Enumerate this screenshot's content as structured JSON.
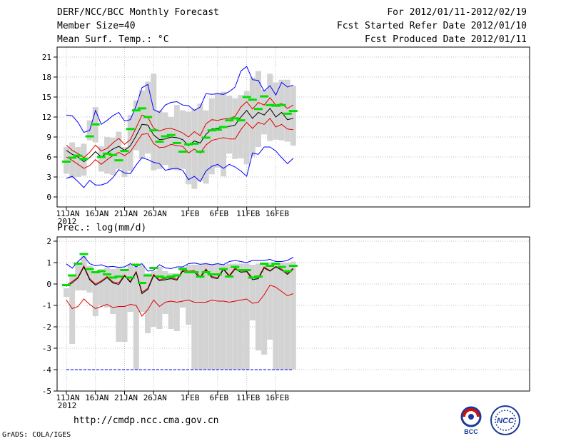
{
  "header": {
    "title": "DERF/NCC/BCC Monthly Forecast",
    "member_size": "Member Size=40",
    "variable1": "Mean Surf. Temp.: °C",
    "fcst_range": "For 2012/01/11-2012/02/19",
    "fcst_started": "Fcst Started Refer Date 2012/01/10",
    "fcst_produced": "Fcst Produced Date 2012/01/11"
  },
  "footer": {
    "url": "http://cmdp.ncc.cma.gov.cn",
    "grads": "GrADS: COLA/IGES",
    "logo_bcc": "BCC",
    "logo_ncc": "NCC"
  },
  "colors": {
    "envelope": "#0000ff",
    "spread": "#e00000",
    "mean": "#000000",
    "observed": "#00e000",
    "box": "#d3d3d3"
  },
  "chart_data": [
    {
      "type": "line",
      "title": "Mean Surf. Temp.: °C",
      "x_tick_labels": [
        "11JAN",
        "16JAN",
        "21JAN",
        "26JAN",
        "1FEB",
        "6FEB",
        "11FEB",
        "16FEB"
      ],
      "x_tick_days": [
        0,
        5,
        10,
        15,
        21,
        26,
        31,
        36
      ],
      "x_year_label": "2012",
      "ylim": [
        -1.5,
        22.5
      ],
      "y_ticks": [
        0,
        3,
        6,
        9,
        12,
        15,
        18,
        21
      ],
      "series": [
        {
          "name": "max",
          "values": [
            12.3,
            12.2,
            11.2,
            9.7,
            10.0,
            13.0,
            10.9,
            11.5,
            12.2,
            12.7,
            11.4,
            11.6,
            13.7,
            16.4,
            16.9,
            13.1,
            12.7,
            13.8,
            14.2,
            14.3,
            13.8,
            13.7,
            13.0,
            13.5,
            15.5,
            15.4,
            15.5,
            15.4,
            15.8,
            16.5,
            18.9,
            19.6,
            17.6,
            17.5,
            15.9,
            16.7,
            15.3,
            17.2,
            16.5,
            16.8
          ]
        },
        {
          "name": "spread_high",
          "values": [
            7.8,
            7.0,
            6.5,
            5.9,
            6.7,
            7.8,
            6.9,
            7.3,
            8.1,
            8.8,
            7.9,
            8.6,
            10.4,
            12.3,
            12.0,
            10.3,
            9.9,
            10.2,
            10.3,
            10.0,
            9.6,
            9.0,
            9.8,
            9.2,
            11.0,
            11.6,
            11.5,
            11.7,
            11.8,
            12.1,
            13.5,
            14.3,
            13.2,
            14.2,
            13.8,
            14.9,
            13.8,
            14.0,
            13.3,
            13.8
          ]
        },
        {
          "name": "mean",
          "values": [
            7.0,
            6.4,
            6.0,
            5.3,
            5.9,
            6.8,
            6.0,
            6.6,
            7.2,
            7.6,
            7.0,
            7.7,
            9.2,
            10.9,
            10.8,
            9.3,
            8.6,
            8.7,
            9.0,
            8.9,
            8.6,
            7.7,
            8.4,
            8.1,
            9.4,
            10.2,
            10.3,
            10.5,
            10.6,
            10.8,
            12.0,
            13.0,
            11.8,
            12.7,
            12.3,
            13.3,
            12.0,
            12.7,
            11.6,
            11.8
          ]
        },
        {
          "name": "spread_low",
          "values": [
            6.0,
            5.5,
            4.9,
            4.3,
            4.7,
            5.6,
            4.9,
            5.6,
            6.2,
            6.7,
            6.2,
            6.8,
            8.1,
            9.4,
            9.5,
            8.0,
            7.4,
            7.5,
            7.9,
            7.7,
            7.6,
            6.6,
            7.2,
            6.6,
            7.8,
            8.5,
            8.7,
            8.9,
            8.7,
            8.7,
            10.1,
            11.2,
            10.3,
            11.2,
            10.9,
            11.8,
            10.5,
            10.9,
            10.2,
            10.1
          ]
        },
        {
          "name": "min",
          "values": [
            2.8,
            3.1,
            2.3,
            1.4,
            2.5,
            1.8,
            1.8,
            2.1,
            2.9,
            4.1,
            3.6,
            3.5,
            4.8,
            5.9,
            5.6,
            5.2,
            5.0,
            4.0,
            4.2,
            4.3,
            4.0,
            2.6,
            3.1,
            2.3,
            3.9,
            4.6,
            4.9,
            4.3,
            4.9,
            4.5,
            3.9,
            3.1,
            6.6,
            6.4,
            7.5,
            7.5,
            6.9,
            5.9,
            5.0,
            5.8
          ]
        },
        {
          "name": "observed",
          "values": [
            5.3,
            5.9,
            6.2,
            5.7,
            9.1,
            10.9,
            6.0,
            6.5,
            6.3,
            5.5,
            6.9,
            10.2,
            13.0,
            13.3,
            12.0,
            10.0,
            8.3,
            9.1,
            9.3,
            8.1,
            6.8,
            7.9,
            8.0,
            6.8,
            8.9,
            10.0,
            10.1,
            10.5,
            11.5,
            11.8,
            11.5,
            15.0,
            14.6,
            13.2,
            15.1,
            13.8,
            13.7,
            13.8,
            12.5,
            12.9
          ]
        }
      ],
      "box_ranges": [
        [
          3.5,
          7.5
        ],
        [
          2.8,
          8.2
        ],
        [
          3.0,
          7.5
        ],
        [
          3.2,
          8.0
        ],
        [
          8.5,
          11.5
        ],
        [
          8.2,
          13.5
        ],
        [
          3.8,
          7.6
        ],
        [
          3.5,
          9.0
        ],
        [
          3.3,
          8.9
        ],
        [
          4.2,
          9.8
        ],
        [
          3.0,
          7.5
        ],
        [
          3.9,
          12.3
        ],
        [
          7.0,
          14.5
        ],
        [
          5.7,
          16.0
        ],
        [
          6.5,
          17.3
        ],
        [
          4.0,
          18.5
        ],
        [
          4.2,
          13.0
        ],
        [
          4.8,
          12.7
        ],
        [
          4.1,
          12.0
        ],
        [
          4.0,
          13.8
        ],
        [
          4.2,
          13.0
        ],
        [
          1.9,
          12.8
        ],
        [
          1.2,
          13.2
        ],
        [
          2.4,
          14.0
        ],
        [
          2.0,
          13.0
        ],
        [
          3.4,
          14.8
        ],
        [
          4.4,
          15.6
        ],
        [
          3.1,
          15.8
        ],
        [
          6.5,
          15.2
        ],
        [
          5.7,
          14.8
        ],
        [
          5.8,
          15.3
        ],
        [
          4.9,
          15.9
        ],
        [
          6.1,
          17.9
        ],
        [
          7.5,
          18.9
        ],
        [
          9.4,
          16.1
        ],
        [
          8.4,
          18.5
        ],
        [
          8.6,
          17.2
        ],
        [
          8.5,
          17.6
        ],
        [
          8.3,
          17.6
        ],
        [
          7.7,
          16.7
        ]
      ]
    },
    {
      "type": "line",
      "title": "Prec.: log(mm/d)",
      "x_tick_labels": [
        "11JAN",
        "16JAN",
        "21JAN",
        "26JAN",
        "1FEB",
        "6FEB",
        "11FEB",
        "16FEB"
      ],
      "x_tick_days": [
        0,
        5,
        10,
        15,
        21,
        26,
        31,
        36
      ],
      "x_year_label": "2012",
      "ylim": [
        -5,
        2.2
      ],
      "y_ticks": [
        -5,
        -4,
        -3,
        -2,
        -1,
        0,
        1,
        2
      ],
      "series": [
        {
          "name": "max",
          "values": [
            0.94,
            0.74,
            1.05,
            1.3,
            0.95,
            0.85,
            0.9,
            0.8,
            0.82,
            0.78,
            0.8,
            0.95,
            0.8,
            0.95,
            0.6,
            0.65,
            0.9,
            0.75,
            0.72,
            0.8,
            0.8,
            0.95,
            0.98,
            0.92,
            0.95,
            0.9,
            0.95,
            0.9,
            1.05,
            1.1,
            1.05,
            1.0,
            1.1,
            1.1,
            1.1,
            1.15,
            1.05,
            1.05,
            1.1,
            1.25
          ]
        },
        {
          "name": "spread_high",
          "values": [
            -0.05,
            0.12,
            0.32,
            0.85,
            0.25,
            0.0,
            0.15,
            0.35,
            0.1,
            0.05,
            0.42,
            0.12,
            0.58,
            -0.38,
            -0.2,
            0.45,
            0.2,
            0.25,
            0.3,
            0.22,
            0.65,
            0.6,
            0.62,
            0.35,
            0.7,
            0.35,
            0.3,
            0.72,
            0.4,
            0.75,
            0.6,
            0.62,
            0.28,
            0.3,
            0.8,
            0.62,
            0.82,
            0.7,
            0.5,
            0.75
          ]
        },
        {
          "name": "mean",
          "values": [
            -0.1,
            0.05,
            0.28,
            0.8,
            0.2,
            -0.05,
            0.1,
            0.3,
            0.05,
            -0.02,
            0.38,
            0.08,
            0.55,
            -0.45,
            -0.25,
            0.4,
            0.15,
            0.2,
            0.25,
            0.18,
            0.6,
            0.55,
            0.55,
            0.3,
            0.65,
            0.3,
            0.25,
            0.68,
            0.35,
            0.7,
            0.55,
            0.58,
            0.2,
            0.25,
            0.75,
            0.6,
            0.8,
            0.65,
            0.45,
            0.7
          ]
        },
        {
          "name": "spread_low",
          "values": [
            -0.75,
            -1.15,
            -1.05,
            -0.7,
            -0.95,
            -1.15,
            -1.05,
            -0.95,
            -1.1,
            -1.05,
            -1.05,
            -0.95,
            -1.0,
            -1.5,
            -1.2,
            -0.75,
            -1.05,
            -0.85,
            -0.8,
            -0.85,
            -0.8,
            -0.75,
            -0.85,
            -0.85,
            -0.85,
            -0.75,
            -0.8,
            -0.8,
            -0.85,
            -0.8,
            -0.75,
            -0.7,
            -0.9,
            -0.85,
            -0.5,
            -0.05,
            -0.15,
            -0.35,
            -0.55,
            -0.45
          ]
        },
        {
          "name": "min",
          "values": [
            -4.0,
            -4.0,
            -4.0,
            -4.0,
            -4.0,
            -4.0,
            -4.0,
            -4.0,
            -4.0,
            -4.0,
            -4.0,
            -4.0,
            -4.0,
            -4.0,
            -4.0,
            -4.0,
            -4.0,
            -4.0,
            -4.0,
            -4.0,
            -4.0,
            -4.0,
            -4.0,
            -4.0,
            -4.0,
            -4.0,
            -4.0,
            -4.0,
            -4.0,
            -4.0,
            -4.0,
            -4.0,
            -4.0,
            -4.0,
            -4.0,
            -4.0,
            -4.0,
            -4.0,
            -4.0,
            -4.0
          ]
        },
        {
          "name": "observed",
          "values": [
            -0.05,
            0.4,
            0.95,
            1.4,
            0.7,
            0.55,
            0.6,
            0.45,
            0.3,
            0.35,
            0.65,
            0.3,
            0.9,
            0.05,
            0.4,
            0.75,
            0.35,
            0.3,
            0.35,
            0.4,
            0.7,
            0.55,
            0.55,
            0.35,
            0.55,
            0.45,
            0.45,
            0.7,
            0.35,
            0.8,
            0.65,
            0.65,
            0.3,
            0.35,
            0.95,
            0.85,
            0.95,
            0.8,
            0.6,
            0.85
          ]
        }
      ],
      "box_ranges": [
        [
          -0.6,
          -0.2
        ],
        [
          -2.8,
          0.4
        ],
        [
          -0.3,
          0.9
        ],
        [
          -0.3,
          1.3
        ],
        [
          -0.4,
          0.85
        ],
        [
          -1.5,
          0.6
        ],
        [
          -1.0,
          0.7
        ],
        [
          -1.1,
          0.75
        ],
        [
          -1.4,
          0.7
        ],
        [
          -2.7,
          0.75
        ],
        [
          -2.7,
          0.6
        ],
        [
          -1.3,
          0.9
        ],
        [
          -4.0,
          0.8
        ],
        [
          -1.3,
          0.9
        ],
        [
          -2.3,
          0.5
        ],
        [
          -2.0,
          0.6
        ],
        [
          -2.1,
          0.8
        ],
        [
          -1.4,
          0.6
        ],
        [
          -2.1,
          0.5
        ],
        [
          -2.2,
          0.5
        ],
        [
          -1.1,
          0.8
        ],
        [
          -1.9,
          0.9
        ],
        [
          -4.0,
          0.9
        ],
        [
          -4.0,
          0.9
        ],
        [
          -4.0,
          0.95
        ],
        [
          -4.0,
          0.9
        ],
        [
          -4.0,
          0.95
        ],
        [
          -4.0,
          0.9
        ],
        [
          -4.0,
          0.95
        ],
        [
          -4.0,
          0.95
        ],
        [
          -4.0,
          0.95
        ],
        [
          -4.0,
          0.95
        ],
        [
          -1.7,
          0.9
        ],
        [
          -3.1,
          0.95
        ],
        [
          -3.3,
          1.0
        ],
        [
          -2.6,
          1.0
        ],
        [
          -4.0,
          1.0
        ],
        [
          -4.0,
          1.0
        ],
        [
          -4.0,
          1.0
        ],
        [
          -4.0,
          1.05
        ]
      ]
    }
  ]
}
